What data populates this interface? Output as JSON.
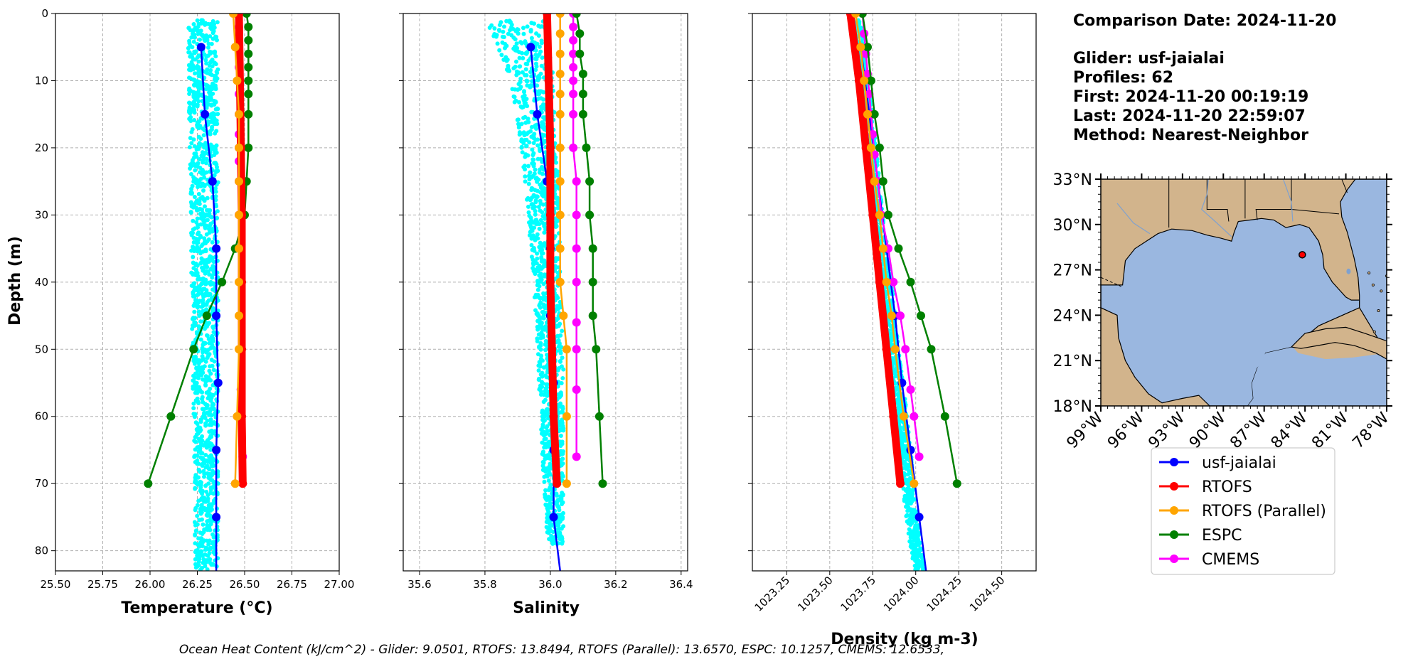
{
  "info": {
    "comparison_date": "Comparison Date: 2024-11-20",
    "glider": "Glider: usf-jaialai",
    "profiles": "Profiles: 62",
    "first": "First: 2024-11-20 00:19:19",
    "last": "Last: 2024-11-20 22:59:07",
    "method": "Method: Nearest-Neighbor"
  },
  "footer": "Ocean Heat Content (kJ/cm^2) - Glider: 9.0501,  RTOFS: 13.8494,  RTOFS (Parallel): 13.6570,  ESPC: 10.1257,  CMEMS: 12.6533,",
  "colors": {
    "glider": "#0000ff",
    "rtofs": "#ff0000",
    "rtofs_parallel": "#ffa500",
    "espc": "#008000",
    "cmems": "#ff00ff",
    "raw": "#00ffff",
    "land": "#d2b48c",
    "ocean": "#9ab7e0"
  },
  "legend": [
    "usf-jaialai",
    "RTOFS",
    "RTOFS (Parallel)",
    "ESPC",
    "CMEMS"
  ],
  "map": {
    "lat_labels": [
      "33°N",
      "30°N",
      "27°N",
      "24°N",
      "21°N",
      "18°N"
    ],
    "lon_labels": [
      "99°W",
      "96°W",
      "93°W",
      "90°W",
      "87°W",
      "84°W",
      "81°W",
      "78°W"
    ],
    "glider_position": {
      "lon": -84.2,
      "lat": 28.0
    }
  },
  "chart_data": [
    {
      "type": "line",
      "xlabel": "Temperature (°C)",
      "ylabel": "Depth (m)",
      "xlim": [
        25.5,
        27.0
      ],
      "ylim": [
        0,
        83
      ],
      "y_inverted": true,
      "xticks": [
        "25.50",
        "25.75",
        "26.00",
        "26.25",
        "26.50",
        "26.75",
        "27.00"
      ],
      "yticks": [
        "0",
        "10",
        "20",
        "30",
        "40",
        "50",
        "60",
        "70",
        "80"
      ],
      "raw_range": {
        "depth": [
          1,
          83
        ],
        "left": [
          26.2,
          26.24,
          26.29,
          26.3,
          26.31,
          26.32,
          26.33,
          26.33
        ],
        "right": [
          26.36,
          26.36,
          26.37,
          26.38,
          26.38,
          26.38,
          26.37,
          26.36
        ]
      },
      "series": [
        {
          "name": "usf-jaialai",
          "depth": [
            5,
            15,
            25,
            35,
            45,
            55,
            65,
            75,
            83
          ],
          "values": [
            26.27,
            26.29,
            26.33,
            26.35,
            26.35,
            26.36,
            26.35,
            26.35,
            26.35
          ],
          "end_marker": false
        },
        {
          "name": "RTOFS",
          "depth": [
            0,
            10,
            20,
            30,
            40,
            50,
            60,
            70
          ],
          "values": [
            26.47,
            26.475,
            26.48,
            26.485,
            26.485,
            26.485,
            26.485,
            26.49
          ],
          "heavy": true
        },
        {
          "name": "RTOFS (Parallel)",
          "depth": [
            0,
            5,
            10,
            15,
            20,
            25,
            30,
            35,
            40,
            45,
            50,
            60,
            70
          ],
          "values": [
            26.44,
            26.45,
            26.46,
            26.47,
            26.47,
            26.47,
            26.47,
            26.47,
            26.47,
            26.47,
            26.47,
            26.46,
            26.45
          ]
        },
        {
          "name": "ESPC",
          "depth": [
            0,
            2,
            4,
            6,
            8,
            10,
            12,
            15,
            20,
            25,
            30,
            35,
            40,
            45,
            50,
            60,
            70
          ],
          "values": [
            26.51,
            26.52,
            26.52,
            26.52,
            26.52,
            26.52,
            26.52,
            26.52,
            26.52,
            26.51,
            26.5,
            26.45,
            26.38,
            26.3,
            26.23,
            26.11,
            25.99
          ]
        },
        {
          "name": "CMEMS",
          "depth": [
            0,
            2,
            4,
            6,
            8,
            10,
            12,
            15,
            18,
            20,
            22,
            25,
            30,
            35,
            40,
            45,
            50,
            56,
            60,
            66
          ],
          "values": [
            26.47,
            26.47,
            26.47,
            26.47,
            26.47,
            26.47,
            26.47,
            26.47,
            26.47,
            26.47,
            26.47,
            26.47,
            26.47,
            26.48,
            26.48,
            26.48,
            26.48,
            26.48,
            26.48,
            26.49
          ]
        }
      ]
    },
    {
      "type": "line",
      "xlabel": "Salinity",
      "xlim": [
        35.55,
        36.42
      ],
      "ylim": [
        0,
        83
      ],
      "y_inverted": true,
      "xticks": [
        "35.6",
        "35.8",
        "36.0",
        "36.2",
        "36.4"
      ],
      "raw_range": {
        "depth": [
          1,
          5,
          10,
          20,
          30,
          40,
          50,
          60,
          70,
          79
        ],
        "left": [
          35.8,
          35.84,
          35.88,
          35.91,
          35.93,
          35.95,
          35.96,
          35.97,
          35.98,
          35.99
        ],
        "right": [
          35.98,
          36.0,
          36.01,
          36.02,
          36.03,
          36.03,
          36.04,
          36.04,
          36.04,
          36.04
        ]
      },
      "series": [
        {
          "name": "usf-jaialai",
          "depth": [
            5,
            15,
            25,
            35,
            45,
            55,
            65,
            75,
            83
          ],
          "values": [
            35.94,
            35.96,
            35.99,
            36.0,
            36.0,
            36.01,
            36.01,
            36.01,
            36.03
          ],
          "end_marker": false
        },
        {
          "name": "RTOFS",
          "depth": [
            0,
            10,
            20,
            30,
            40,
            50,
            60,
            70
          ],
          "values": [
            35.99,
            35.995,
            36.0,
            36.0,
            36.0,
            36.005,
            36.01,
            36.02
          ],
          "heavy": true
        },
        {
          "name": "RTOFS (Parallel)",
          "depth": [
            0,
            3,
            6,
            9,
            12,
            15,
            20,
            25,
            30,
            35,
            40,
            45,
            50,
            60,
            70
          ],
          "values": [
            36.03,
            36.03,
            36.03,
            36.03,
            36.03,
            36.03,
            36.03,
            36.03,
            36.03,
            36.03,
            36.03,
            36.04,
            36.05,
            36.05,
            36.05
          ]
        },
        {
          "name": "ESPC",
          "depth": [
            0,
            3,
            6,
            9,
            12,
            15,
            20,
            25,
            30,
            35,
            40,
            45,
            50,
            60,
            70
          ],
          "values": [
            36.08,
            36.09,
            36.09,
            36.1,
            36.1,
            36.1,
            36.11,
            36.12,
            36.12,
            36.13,
            36.13,
            36.13,
            36.14,
            36.15,
            36.16
          ]
        },
        {
          "name": "CMEMS",
          "depth": [
            0,
            2,
            4,
            6,
            8,
            10,
            12,
            15,
            20,
            25,
            30,
            35,
            40,
            46,
            50,
            56,
            66
          ],
          "values": [
            36.07,
            36.07,
            36.07,
            36.07,
            36.07,
            36.07,
            36.07,
            36.07,
            36.07,
            36.08,
            36.08,
            36.08,
            36.08,
            36.08,
            36.08,
            36.08,
            36.08
          ]
        }
      ]
    },
    {
      "type": "line",
      "xlabel": "Density (kg m-3)",
      "xlim": [
        1023.05,
        1024.7
      ],
      "ylim": [
        0,
        83
      ],
      "y_inverted": true,
      "xticks": [
        "1023.25",
        "1023.50",
        "1023.75",
        "1024.00",
        "1024.25",
        "1024.50"
      ],
      "raw_range": {
        "depth": [
          1,
          10,
          20,
          30,
          40,
          50,
          60,
          70,
          80,
          83
        ],
        "left": [
          1023.62,
          1023.66,
          1023.7,
          1023.75,
          1023.79,
          1023.83,
          1023.88,
          1023.92,
          1023.97,
          1024.0
        ],
        "right": [
          1023.68,
          1023.72,
          1023.77,
          1023.81,
          1023.86,
          1023.9,
          1023.95,
          1023.99,
          1024.03,
          1024.06
        ]
      },
      "series": [
        {
          "name": "usf-jaialai",
          "depth": [
            5,
            15,
            25,
            35,
            45,
            55,
            65,
            75,
            83
          ],
          "values": [
            1023.68,
            1023.73,
            1023.78,
            1023.83,
            1023.88,
            1023.92,
            1023.97,
            1024.02,
            1024.06
          ],
          "end_marker": false
        },
        {
          "name": "RTOFS",
          "depth": [
            0,
            10,
            20,
            30,
            40,
            50,
            60,
            70
          ],
          "values": [
            1023.62,
            1023.67,
            1023.71,
            1023.75,
            1023.79,
            1023.83,
            1023.87,
            1023.91
          ],
          "heavy": true
        },
        {
          "name": "RTOFS (Parallel)",
          "depth": [
            0,
            5,
            10,
            15,
            20,
            25,
            30,
            35,
            40,
            45,
            50,
            60,
            70
          ],
          "values": [
            1023.65,
            1023.68,
            1023.7,
            1023.72,
            1023.74,
            1023.76,
            1023.79,
            1023.81,
            1023.83,
            1023.86,
            1023.88,
            1023.93,
            1023.99
          ]
        },
        {
          "name": "ESPC",
          "depth": [
            0,
            5,
            10,
            15,
            20,
            25,
            30,
            35,
            40,
            45,
            50,
            60,
            70
          ],
          "values": [
            1023.69,
            1023.72,
            1023.74,
            1023.76,
            1023.79,
            1023.81,
            1023.84,
            1023.9,
            1023.97,
            1024.03,
            1024.09,
            1024.17,
            1024.24
          ]
        },
        {
          "name": "CMEMS",
          "depth": [
            0,
            3,
            6,
            9,
            12,
            15,
            18,
            21,
            25,
            30,
            35,
            40,
            45,
            50,
            56,
            60,
            66
          ],
          "values": [
            1023.69,
            1023.7,
            1023.71,
            1023.72,
            1023.73,
            1023.74,
            1023.75,
            1023.76,
            1023.78,
            1023.8,
            1023.84,
            1023.87,
            1023.91,
            1023.94,
            1023.97,
            1023.99,
            1024.02
          ]
        }
      ]
    }
  ]
}
